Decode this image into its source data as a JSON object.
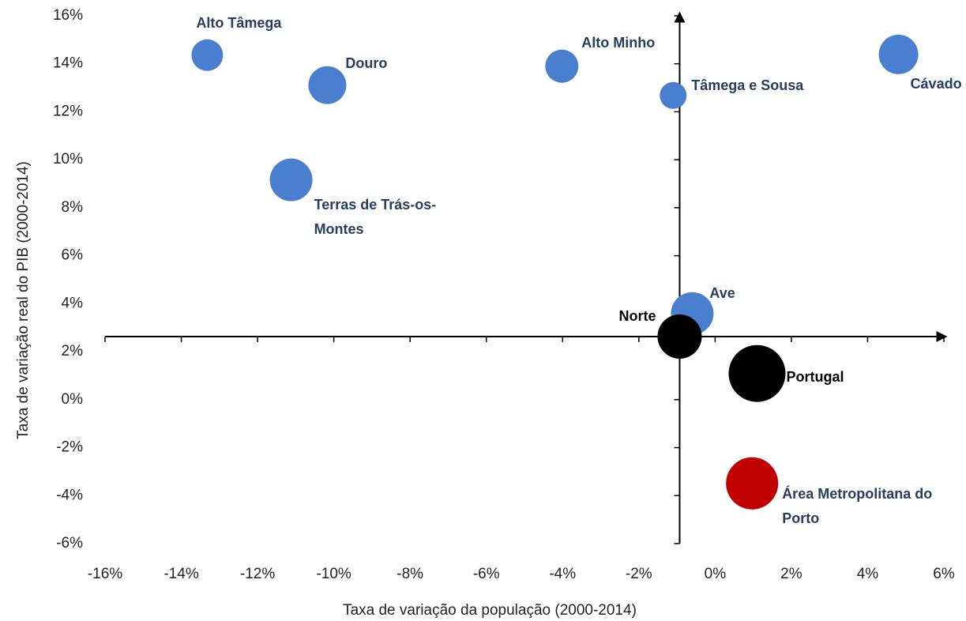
{
  "chart_data": {
    "type": "bubble",
    "x_label": "Taxa de variação da população (2000-2014)",
    "y_label": "Taxa de variação real do PIB  (2000-2014)",
    "xlim": [
      -16,
      6
    ],
    "ylim": [
      -6,
      16
    ],
    "xticks": [
      {
        "value": -16,
        "label": "-16%"
      },
      {
        "value": -14,
        "label": "-14%"
      },
      {
        "value": -12,
        "label": "-12%"
      },
      {
        "value": -10,
        "label": "-10%"
      },
      {
        "value": -8,
        "label": "-8%"
      },
      {
        "value": -6,
        "label": "-6%"
      },
      {
        "value": -4,
        "label": "-4%"
      },
      {
        "value": -2,
        "label": "-2%"
      },
      {
        "value": 0,
        "label": "0%"
      },
      {
        "value": 2,
        "label": "2%"
      },
      {
        "value": 4,
        "label": "4%"
      },
      {
        "value": 6,
        "label": "6%"
      }
    ],
    "yticks": [
      {
        "value": -6,
        "label": "-6%"
      },
      {
        "value": -4,
        "label": "-4%"
      },
      {
        "value": -2,
        "label": "-2%"
      },
      {
        "value": 0,
        "label": "0%"
      },
      {
        "value": 2,
        "label": "2%"
      },
      {
        "value": 4,
        "label": "4%"
      },
      {
        "value": 6,
        "label": "6%"
      },
      {
        "value": 8,
        "label": "8%"
      },
      {
        "value": 10,
        "label": "10%"
      },
      {
        "value": 12,
        "label": "12%"
      },
      {
        "value": 14,
        "label": "14%"
      },
      {
        "value": 16,
        "label": "16%"
      }
    ],
    "axis_cross": {
      "x": -0.93,
      "y": 2.63
    },
    "points": [
      {
        "name": "Alto Tâmega",
        "x": -13.32,
        "y": 14.36,
        "size": 20,
        "color": "#4a7fd0",
        "label_color": "#243f60"
      },
      {
        "name": "Douro",
        "x": -10.17,
        "y": 13.11,
        "size": 24,
        "color": "#4a7fd0",
        "label_color": "#243f60"
      },
      {
        "name": "Alto Minho",
        "x": -4.02,
        "y": 13.9,
        "size": 21,
        "color": "#4a7fd0",
        "label_color": "#243f60"
      },
      {
        "name": "Tâmega e Sousa",
        "x": -1.1,
        "y": 12.68,
        "size": 17,
        "color": "#4a7fd0",
        "label_color": "#243f60"
      },
      {
        "name": "Cávado",
        "x": 4.81,
        "y": 14.39,
        "size": 25,
        "color": "#4a7fd0",
        "label_color": "#243f60"
      },
      {
        "name": "Terras de Trás-os-Montes",
        "x": -11.12,
        "y": 9.16,
        "size": 27,
        "color": "#4a7fd0",
        "label_color": "#243f60"
      },
      {
        "name": "Ave",
        "x": -0.6,
        "y": 3.59,
        "size": 27,
        "color": "#4a7fd0",
        "label_color": "#243f60"
      },
      {
        "name": "Norte",
        "x": -0.93,
        "y": 2.63,
        "size": 28,
        "color": "#000000",
        "label_color": "#000000"
      },
      {
        "name": "Portugal",
        "x": 1.1,
        "y": 1.09,
        "size": 36,
        "color": "#000000",
        "label_color": "#000000"
      },
      {
        "name": "Área Metropolitana do Porto",
        "x": 0.97,
        "y": -3.49,
        "size": 33,
        "color": "#c00000",
        "label_color": "#243f60"
      }
    ]
  }
}
